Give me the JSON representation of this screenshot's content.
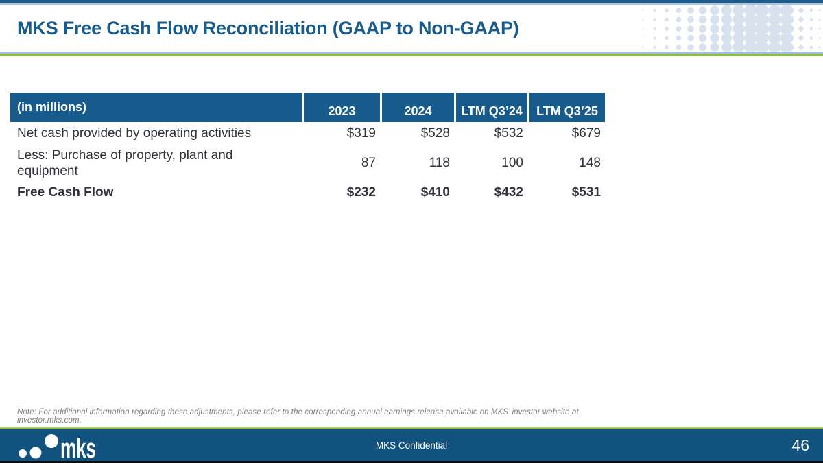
{
  "header": {
    "title": "MKS Free Cash Flow Reconciliation (GAAP to Non-GAAP)"
  },
  "table": {
    "unit_label": "(in millions)",
    "columns": [
      "2023",
      "2024",
      "LTM Q3’24",
      "LTM Q3’25"
    ],
    "rows": [
      {
        "label": "Net cash provided by operating activities",
        "values": [
          "$319",
          "$528",
          "$532",
          "$679"
        ]
      },
      {
        "label": "Less: Purchase of property, plant and equipment",
        "values": [
          "87",
          "118",
          "100",
          "148"
        ]
      },
      {
        "label": "Free Cash Flow",
        "values": [
          "$232",
          "$410",
          "$432",
          "$531"
        ]
      }
    ]
  },
  "note": {
    "text": "Note: For additional information regarding these adjustments, please refer to the corresponding annual earnings release available on MKS’ investor website at investor.mks.com."
  },
  "footer": {
    "logo_text": "mks",
    "confidential": "MKS Confidential",
    "page_number": "46"
  },
  "colors": {
    "brand_blue": "#175b8d",
    "title_blue": "#185c8e",
    "footer_blue": "#11527e",
    "accent_green": "#8cbd4e",
    "light_blue_strip": "#a3c6e4",
    "pattern_blue": "#d8e2ef",
    "body_text": "#30323c",
    "note_gray": "#7e7e7e"
  }
}
